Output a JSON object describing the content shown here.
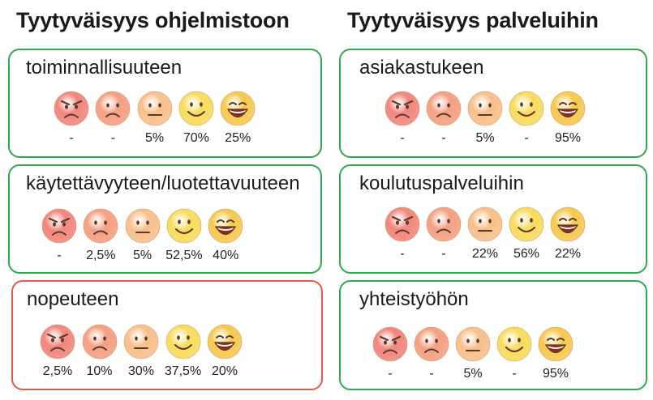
{
  "titles": {
    "left": "Tyytyväisyys ohjelmistoon",
    "right": "Tyytyväisyys palveluihin"
  },
  "colors": {
    "good_border": "#2eaa4f",
    "bad_border": "#e05a4b",
    "face_very_bad": "#f2877e",
    "face_bad": "#f4a183",
    "face_neutral": "#f8c08b",
    "face_good": "#f7dc5c",
    "face_very_good": "#f6c94f"
  },
  "face_scale": [
    "very-angry-face-icon",
    "sad-face-icon",
    "neutral-face-icon",
    "smiling-face-icon",
    "laughing-face-icon"
  ],
  "chart_data": [
    {
      "type": "table",
      "panel": "Tyytyväisyys ohjelmistoon",
      "label": "toiminnallisuuteen",
      "highlight": "green",
      "values": [
        "-",
        "-",
        "5%",
        "70%",
        "25%"
      ]
    },
    {
      "type": "table",
      "panel": "Tyytyväisyys ohjelmistoon",
      "label": "käytettävyyteen/luotettavuuteen",
      "highlight": "green",
      "values": [
        "-",
        "2,5%",
        "5%",
        "52,5%",
        "40%"
      ]
    },
    {
      "type": "table",
      "panel": "Tyytyväisyys ohjelmistoon",
      "label": "nopeuteen",
      "highlight": "red",
      "values": [
        "2,5%",
        "10%",
        "30%",
        "37,5%",
        "20%"
      ]
    },
    {
      "type": "table",
      "panel": "Tyytyväisyys palveluihin",
      "label": "asiakastukeen",
      "highlight": "green",
      "values": [
        "-",
        "-",
        "5%",
        "-",
        "95%"
      ]
    },
    {
      "type": "table",
      "panel": "Tyytyväisyys palveluihin",
      "label": "koulutuspalveluihin",
      "highlight": "green",
      "values": [
        "-",
        "-",
        "22%",
        "56%",
        "22%"
      ]
    },
    {
      "type": "table",
      "panel": "Tyytyväisyys palveluihin",
      "label": "yhteistyöhön",
      "highlight": "green",
      "values": [
        "-",
        "-",
        "5%",
        "-",
        "95%"
      ]
    }
  ]
}
